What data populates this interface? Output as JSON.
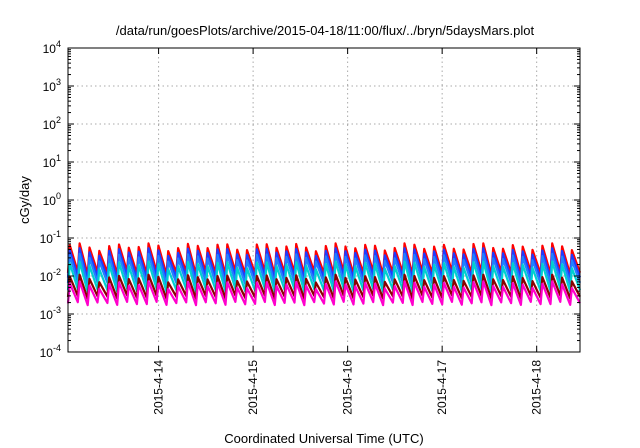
{
  "chart_data": {
    "type": "line",
    "title": "/data/run/goesPlots/archive/2015-04-18/11:00/flux/../bryn/5daysMars.plot",
    "xlabel": "Coordinated Universal Time (UTC)",
    "ylabel": "cGy/day",
    "yscale": "log",
    "ylim": [
      0.0001,
      10000
    ],
    "y_ticks": [
      {
        "base": "10",
        "exp": "4",
        "value": 10000
      },
      {
        "base": "10",
        "exp": "3",
        "value": 1000
      },
      {
        "base": "10",
        "exp": "2",
        "value": 100
      },
      {
        "base": "10",
        "exp": "1",
        "value": 10
      },
      {
        "base": "10",
        "exp": "0",
        "value": 1
      },
      {
        "base": "10",
        "exp": "-1",
        "value": 0.1
      },
      {
        "base": "10",
        "exp": "-2",
        "value": 0.01
      },
      {
        "base": "10",
        "exp": "-3",
        "value": 0.001
      },
      {
        "base": "10",
        "exp": "-4",
        "value": 0.0001
      }
    ],
    "xlim": [
      "2015-04-13T01:00",
      "2015-04-18T11:00"
    ],
    "x_ticks": [
      {
        "label": "2015-4-14",
        "value": "2015-04-14T00:00"
      },
      {
        "label": "2015-4-15",
        "value": "2015-04-15T00:00"
      },
      {
        "label": "2015-4-16",
        "value": "2015-04-16T00:00"
      },
      {
        "label": "2015-4-17",
        "value": "2015-04-17T00:00"
      },
      {
        "label": "2015-4-18",
        "value": "2015-04-18T00:00"
      }
    ],
    "grid": true,
    "legend": "none",
    "pattern": "sawtooth",
    "pulse_period_hours": 2.5,
    "series": [
      {
        "color": "#ff0000",
        "peak": 0.06,
        "trough": 0.012
      },
      {
        "color": "#1e3cff",
        "peak": 0.045,
        "trough": 0.009
      },
      {
        "color": "#2080ff",
        "peak": 0.032,
        "trough": 0.0065
      },
      {
        "color": "#00d0d0",
        "peak": 0.02,
        "trough": 0.0042
      },
      {
        "color": "#8b0000",
        "peak": 0.009,
        "trough": 0.0028
      },
      {
        "color": "#ff00cc",
        "peak": 0.006,
        "trough": 0.0019
      }
    ]
  }
}
